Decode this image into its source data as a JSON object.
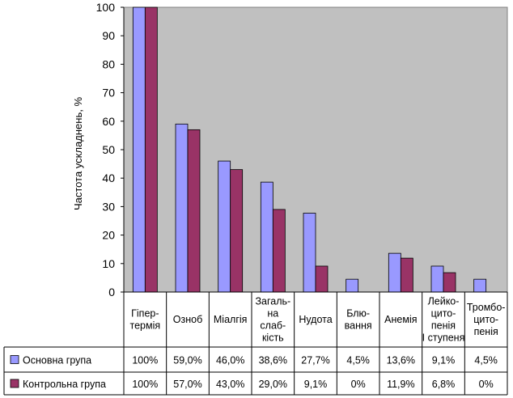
{
  "chart_data": {
    "type": "bar",
    "title": "",
    "ylabel": "Частота ускладнень, %",
    "xlabel": "",
    "ylim": [
      0,
      100
    ],
    "yticks": [
      0,
      10,
      20,
      30,
      40,
      50,
      60,
      70,
      80,
      90,
      100
    ],
    "grid": false,
    "legend": "data-table",
    "plot_background": "#c0c0c0",
    "categories": [
      [
        "Гіпер-",
        "термія"
      ],
      [
        "Озноб"
      ],
      [
        "Міалгія"
      ],
      [
        "Загаль-",
        "на",
        "слаб-",
        "кість"
      ],
      [
        "Нудота"
      ],
      [
        "Блю-",
        "вання"
      ],
      [
        "Анемія"
      ],
      [
        "Лейко-",
        "цито-",
        "пенія",
        "І ступеня"
      ],
      [
        "Тромбо-",
        "цито-",
        "пенія"
      ]
    ],
    "series": [
      {
        "name": "Основна група",
        "color": "#9999ff",
        "values": [
          100,
          59.0,
          46.0,
          38.6,
          27.7,
          4.5,
          13.6,
          9.1,
          4.5
        ],
        "labels": [
          "100%",
          "59,0%",
          "46,0%",
          "38,6%",
          "27,7%",
          "4,5%",
          "13,6%",
          "9,1%",
          "4,5%"
        ]
      },
      {
        "name": "Контрольна група",
        "color": "#993366",
        "values": [
          100,
          57.0,
          43.0,
          29.0,
          9.1,
          0,
          11.9,
          6.8,
          0
        ],
        "labels": [
          "100%",
          "57,0%",
          "43,0%",
          "29,0%",
          "9,1%",
          "0%",
          "11,9%",
          "6,8%",
          "0%"
        ]
      }
    ]
  }
}
